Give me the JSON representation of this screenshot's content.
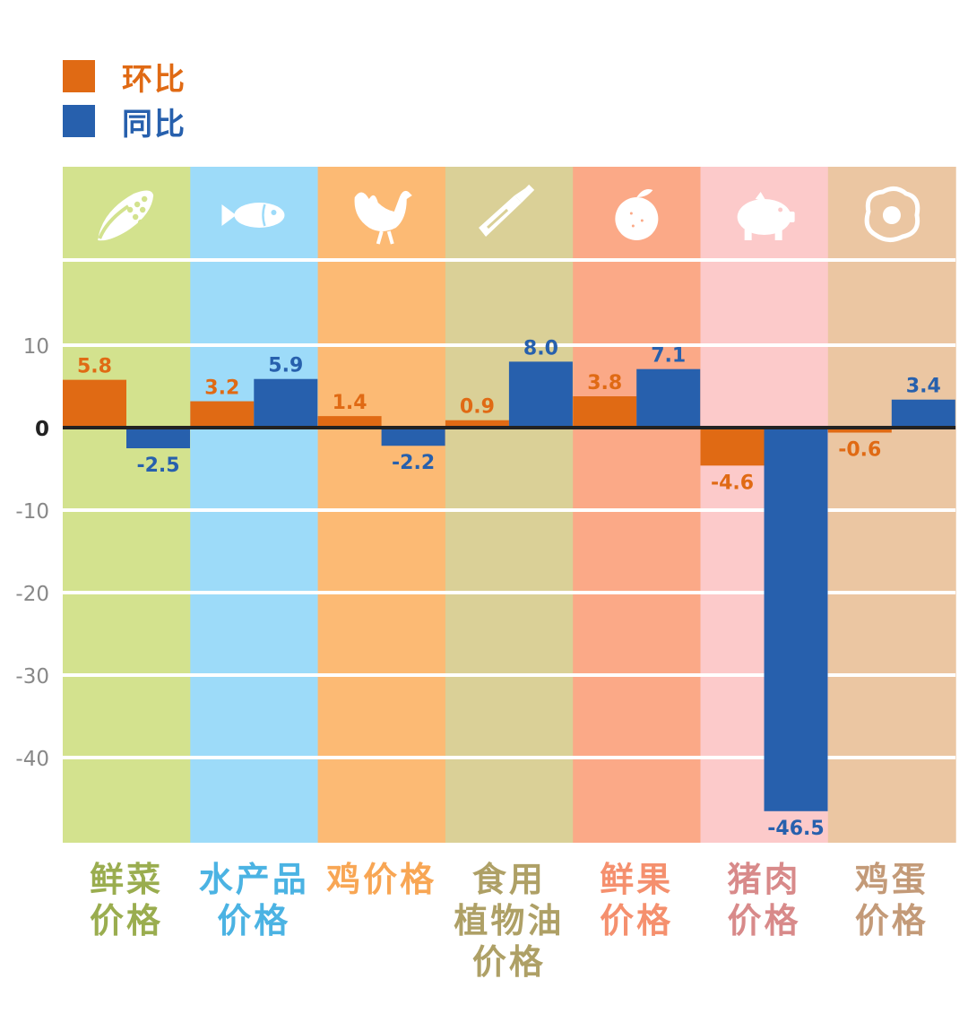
{
  "legend": [
    {
      "name": "环比",
      "color": "#e06a14"
    },
    {
      "name": "同比",
      "color": "#2760ad"
    }
  ],
  "chart_data": {
    "type": "bar",
    "categories": [
      {
        "lines": [
          "鲜菜",
          "价格"
        ],
        "icon": "corn-icon",
        "bg": "#d3e28e",
        "label_color": "#9aad4f"
      },
      {
        "lines": [
          "水产品",
          "价格"
        ],
        "icon": "fish-icon",
        "bg": "#9ddbf9",
        "label_color": "#4bb3e3"
      },
      {
        "lines": [
          "鸡价格"
        ],
        "icon": "rooster-icon",
        "bg": "#fcba74",
        "label_color": "#f8a654"
      },
      {
        "lines": [
          "食用",
          "植物油",
          "价格"
        ],
        "icon": "oil-bottle-icon",
        "bg": "#dad097",
        "label_color": "#aea066"
      },
      {
        "lines": [
          "鲜果",
          "价格"
        ],
        "icon": "orange-icon",
        "bg": "#fba987",
        "label_color": "#f5906e"
      },
      {
        "lines": [
          "猪肉",
          "价格"
        ],
        "icon": "pig-icon",
        "bg": "#fccaca",
        "label_color": "#d88a8a"
      },
      {
        "lines": [
          "鸡蛋",
          "价格"
        ],
        "icon": "fried-egg-icon",
        "bg": "#ebc6a2",
        "label_color": "#c39a78"
      }
    ],
    "series": [
      {
        "name": "环比",
        "color": "#e06a14",
        "values": [
          5.8,
          3.2,
          1.4,
          0.9,
          3.8,
          -4.6,
          -0.6
        ],
        "labels": [
          "5.8",
          "3.2",
          "1.4",
          "0.9",
          "3.8",
          "-4.6",
          "-0.6"
        ]
      },
      {
        "name": "同比",
        "color": "#2760ad",
        "values": [
          -2.5,
          5.9,
          -2.2,
          8.0,
          7.1,
          -46.5,
          3.4
        ],
        "labels": [
          "-2.5",
          "5.9",
          "-2.2",
          "8.0",
          "7.1",
          "-46.5",
          "3.4"
        ]
      }
    ],
    "y_ticks": [
      10,
      0,
      -10,
      -20,
      -30,
      -40
    ],
    "y_tick_labels": [
      "10",
      "0",
      "-10",
      "-20",
      "-30",
      "-40"
    ],
    "ylim": [
      -50,
      20
    ],
    "grid": true,
    "legend_position": "top-left"
  }
}
